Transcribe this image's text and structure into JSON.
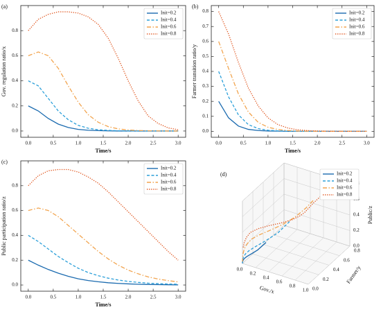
{
  "chart_data": [
    {
      "type": "line",
      "label": "(a)",
      "xlabel": "Time/s",
      "ylabel": "Gov. regulation ratio/x",
      "x": [
        0,
        0.2,
        0.4,
        0.6,
        0.8,
        1,
        1.2,
        1.4,
        1.6,
        1.8,
        2,
        2.2,
        2.4,
        2.6,
        2.8,
        3
      ],
      "xlim": [
        -0.15,
        3.15
      ],
      "ylim": [
        -0.05,
        1.0
      ],
      "xticks": [
        {
          "value": 0,
          "label": "0.0"
        },
        0.5,
        {
          "value": 1,
          "label": "1.0"
        },
        1.5,
        {
          "value": 2,
          "label": "2.0"
        },
        2.5,
        {
          "value": 3,
          "label": "3.0"
        }
      ],
      "yticks": [
        {
          "value": 0,
          "label": "0.0"
        },
        0.2,
        0.4,
        0.6,
        0.8
      ],
      "legend": "upper right",
      "series": [
        {
          "name": "Init=0.2",
          "color": "#1a6aaf",
          "dash": "solid",
          "values": [
            0.2,
            0.16,
            0.1,
            0.055,
            0.028,
            0.013,
            0.006,
            0.003,
            0.001,
            0,
            0,
            0,
            0,
            0,
            0,
            0
          ]
        },
        {
          "name": "Init=0.4",
          "color": "#2b9fd9",
          "dash": "dashed",
          "values": [
            0.4,
            0.36,
            0.26,
            0.16,
            0.09,
            0.045,
            0.022,
            0.01,
            0.005,
            0.002,
            0.001,
            0,
            0,
            0,
            0,
            0
          ]
        },
        {
          "name": "Init=0.6",
          "color": "#f2a44e",
          "dash": "dashdot",
          "values": [
            0.6,
            0.63,
            0.6,
            0.5,
            0.36,
            0.23,
            0.13,
            0.07,
            0.035,
            0.017,
            0.008,
            0.004,
            0.002,
            0.001,
            0,
            0
          ]
        },
        {
          "name": "Init=0.8",
          "color": "#e0531b",
          "dash": "dotted",
          "values": [
            0.8,
            0.89,
            0.93,
            0.95,
            0.95,
            0.94,
            0.91,
            0.85,
            0.74,
            0.58,
            0.4,
            0.24,
            0.12,
            0.06,
            0.025,
            0.01
          ]
        }
      ]
    },
    {
      "type": "line",
      "label": "(b)",
      "xlabel": "Time/s",
      "ylabel": "Farmer transition ratio/y",
      "x": [
        0,
        0.2,
        0.4,
        0.6,
        0.8,
        1,
        1.2,
        1.4,
        1.6,
        1.8,
        2,
        2.2,
        2.4,
        2.6,
        2.8,
        3
      ],
      "xlim": [
        -0.15,
        3.15
      ],
      "ylim": [
        -0.04,
        0.84
      ],
      "xticks": [
        {
          "value": 0,
          "label": "0.0"
        },
        0.5,
        {
          "value": 1,
          "label": "1.0"
        },
        1.5,
        {
          "value": 2,
          "label": "2.0"
        },
        2.5,
        {
          "value": 3,
          "label": "3.0"
        }
      ],
      "yticks": [
        {
          "value": 0,
          "label": "0.0"
        },
        0.1,
        0.2,
        0.3,
        0.4,
        0.5,
        0.6,
        0.7,
        0.8
      ],
      "legend": "upper right",
      "series": [
        {
          "name": "Init=0.2",
          "color": "#1a6aaf",
          "dash": "solid",
          "values": [
            0.2,
            0.09,
            0.035,
            0.013,
            0.005,
            0.002,
            0.001,
            0,
            0,
            0,
            0,
            0,
            0,
            0,
            0,
            0
          ]
        },
        {
          "name": "Init=0.4",
          "color": "#2b9fd9",
          "dash": "dashed",
          "values": [
            0.4,
            0.23,
            0.11,
            0.045,
            0.018,
            0.007,
            0.003,
            0.001,
            0,
            0,
            0,
            0,
            0,
            0,
            0,
            0
          ]
        },
        {
          "name": "Init=0.6",
          "color": "#f2a44e",
          "dash": "dashdot",
          "values": [
            0.6,
            0.42,
            0.25,
            0.13,
            0.06,
            0.027,
            0.012,
            0.005,
            0.002,
            0.001,
            0,
            0,
            0,
            0,
            0,
            0
          ]
        },
        {
          "name": "Init=0.8",
          "color": "#e0531b",
          "dash": "dotted",
          "values": [
            0.8,
            0.65,
            0.46,
            0.29,
            0.17,
            0.09,
            0.045,
            0.022,
            0.01,
            0.005,
            0.002,
            0.001,
            0,
            0,
            0,
            0
          ]
        }
      ]
    },
    {
      "type": "line",
      "label": "(c)",
      "xlabel": "Time/s",
      "ylabel": "Public participation ratio/z",
      "x": [
        0,
        0.2,
        0.4,
        0.6,
        0.8,
        1,
        1.2,
        1.4,
        1.6,
        1.8,
        2,
        2.2,
        2.4,
        2.6,
        2.8,
        3
      ],
      "xlim": [
        -0.15,
        3.15
      ],
      "ylim": [
        -0.05,
        1.0
      ],
      "xticks": [
        {
          "value": 0,
          "label": "0.0"
        },
        0.5,
        {
          "value": 1,
          "label": "1.0"
        },
        1.5,
        {
          "value": 2,
          "label": "2.0"
        },
        2.5,
        {
          "value": 3,
          "label": "3.0"
        }
      ],
      "yticks": [
        {
          "value": 0,
          "label": "0.0"
        },
        0.2,
        0.4,
        0.6,
        0.8
      ],
      "legend": "upper right",
      "series": [
        {
          "name": "Init=0.2",
          "color": "#1a6aaf",
          "dash": "solid",
          "values": [
            0.2,
            0.16,
            0.125,
            0.095,
            0.07,
            0.05,
            0.036,
            0.026,
            0.018,
            0.013,
            0.009,
            0.006,
            0.004,
            0.003,
            0.002,
            0.001
          ]
        },
        {
          "name": "Init=0.4",
          "color": "#2b9fd9",
          "dash": "dashed",
          "values": [
            0.4,
            0.35,
            0.29,
            0.23,
            0.18,
            0.135,
            0.1,
            0.075,
            0.055,
            0.04,
            0.029,
            0.021,
            0.015,
            0.011,
            0.008,
            0.006
          ]
        },
        {
          "name": "Init=0.6",
          "color": "#f2a44e",
          "dash": "dashdot",
          "values": [
            0.6,
            0.62,
            0.6,
            0.55,
            0.48,
            0.41,
            0.34,
            0.27,
            0.21,
            0.16,
            0.12,
            0.09,
            0.065,
            0.048,
            0.035,
            0.025
          ]
        },
        {
          "name": "Init=0.8",
          "color": "#e0531b",
          "dash": "dotted",
          "values": [
            0.8,
            0.88,
            0.92,
            0.93,
            0.93,
            0.91,
            0.87,
            0.82,
            0.75,
            0.67,
            0.59,
            0.51,
            0.43,
            0.35,
            0.27,
            0.2
          ]
        }
      ]
    },
    {
      "type": "line3d",
      "label": "(d)",
      "xlabel": "Gov./x",
      "ylabel": "Farmer/y",
      "zlabel": "Public/z",
      "xlim": [
        0,
        1
      ],
      "ylim": [
        0,
        0.8
      ],
      "zlim": [
        0,
        0.8
      ],
      "xticks": [
        {
          "value": 0,
          "label": "0.0"
        },
        0.2,
        0.4,
        0.6,
        0.8,
        {
          "value": 1,
          "label": "1.0"
        }
      ],
      "yticks": [
        {
          "value": 0,
          "label": "0.0"
        },
        0.2,
        0.4,
        0.6,
        0.8
      ],
      "zticks": [
        {
          "value": 0,
          "label": "0.0"
        },
        0.2,
        0.4,
        0.6,
        0.8
      ],
      "legend": "upper left",
      "series": [
        {
          "name": "Init=0.2",
          "color": "#1a6aaf",
          "dash": "solid"
        },
        {
          "name": "Init=0.4",
          "color": "#2b9fd9",
          "dash": "dashed"
        },
        {
          "name": "Init=0.6",
          "color": "#f2a44e",
          "dash": "dashdot"
        },
        {
          "name": "Init=0.8",
          "color": "#e0531b",
          "dash": "dotted"
        }
      ]
    }
  ]
}
